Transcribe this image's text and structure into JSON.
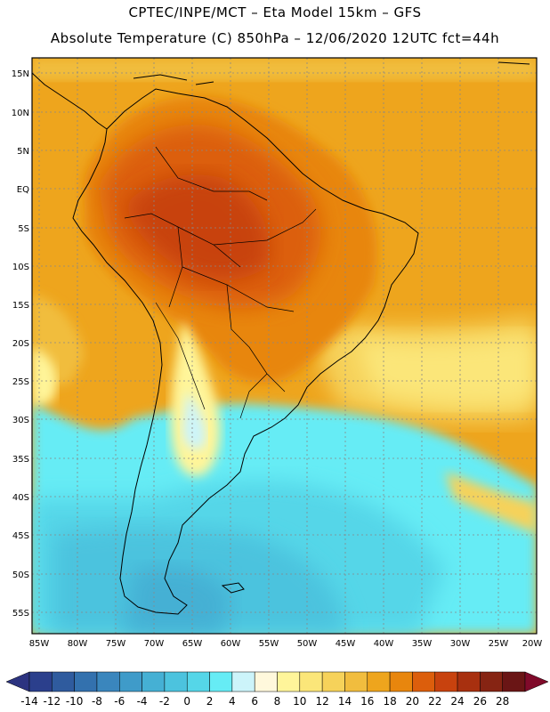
{
  "header": {
    "title_line1": "CPTEC/INPE/MCT –  Eta Model 15km – GFS",
    "title_line2": "Absolute Temperature (C) 850hPa – 12/06/2020 12UTC fct=44h"
  },
  "map": {
    "lat_labels": [
      "15N",
      "10N",
      "5N",
      "EQ",
      "5S",
      "10S",
      "15S",
      "20S",
      "25S",
      "30S",
      "35S",
      "40S",
      "45S",
      "50S",
      "55S"
    ],
    "lon_labels": [
      "85W",
      "80W",
      "75W",
      "70W",
      "65W",
      "60W",
      "55W",
      "50W",
      "45W",
      "40W",
      "35W",
      "30W",
      "25W",
      "20W"
    ]
  },
  "colorbar": {
    "labels": [
      "-14",
      "-12",
      "-10",
      "-8",
      "-6",
      "-4",
      "-2",
      "0",
      "2",
      "4",
      "6",
      "8",
      "10",
      "12",
      "14",
      "16",
      "18",
      "20",
      "22",
      "24",
      "26",
      "28"
    ],
    "colors": [
      "#2b3f8c",
      "#2f5b9e",
      "#3371ae",
      "#3a86bd",
      "#3f9bc9",
      "#45b0d4",
      "#4cc3de",
      "#55d6e8",
      "#66ecf5",
      "#ccf4fa",
      "#fff8dc",
      "#fff59a",
      "#fbe679",
      "#f6d25a",
      "#f1bd3e",
      "#eea51d",
      "#e8860d",
      "#dc5e0c",
      "#c8420e",
      "#a8300f",
      "#862413",
      "#6a1515"
    ],
    "low_color": "#2c3380",
    "high_color": "#800a2a"
  }
}
